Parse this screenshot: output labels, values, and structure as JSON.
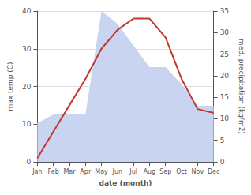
{
  "chart_data": {
    "type": "line",
    "xlabel": "date (month)",
    "ylabel": "max temp (C)",
    "y2label": "med. precipitation (kg/m2)",
    "categories": [
      "Jan",
      "Feb",
      "Mar",
      "Apr",
      "May",
      "Jun",
      "Jul",
      "Aug",
      "Sep",
      "Oct",
      "Nov",
      "Dec"
    ],
    "series": [
      {
        "type": "area",
        "color": "#c8d4f0",
        "axis": "y2",
        "values": [
          9,
          11,
          11,
          11,
          35,
          32,
          27,
          22,
          22,
          18,
          13,
          13
        ]
      },
      {
        "type": "line",
        "color": "#c0392b",
        "values": [
          1,
          8,
          15,
          22,
          30,
          35,
          38,
          38,
          33,
          22,
          14,
          13
        ]
      }
    ],
    "ylim": [
      0,
      40
    ],
    "yticks": [
      0,
      10,
      20,
      30,
      40
    ],
    "y2lim": [
      0,
      35
    ],
    "y2ticks": [
      0,
      5,
      10,
      15,
      20,
      25,
      30,
      35
    ],
    "grid": true
  }
}
